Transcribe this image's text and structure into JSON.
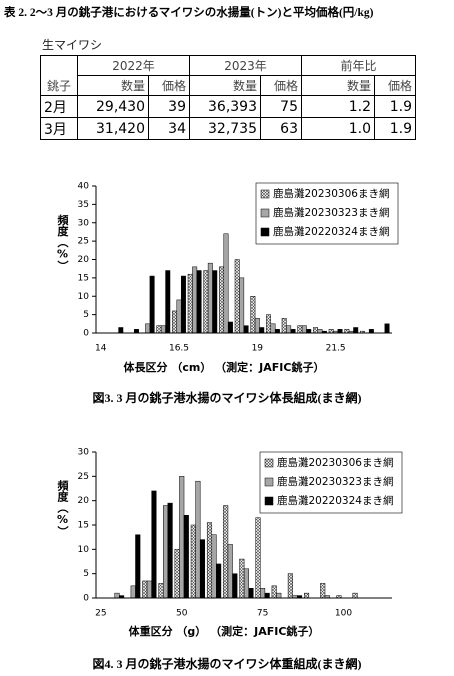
{
  "table": {
    "title": "表 2. 2～3 月の銚子港におけるマイワシの水揚量(トン)と平均価格(円/kg)",
    "subtitle": "生マイワシ",
    "header": [
      "2022年",
      "2023年",
      "前年比"
    ],
    "columns": [
      "銚子",
      "数量",
      "価格",
      "数量",
      "価格",
      "数量",
      "価格"
    ],
    "rows": [
      [
        "2月",
        "29,430",
        "39",
        "36,393",
        "75",
        "1.2",
        "1.9"
      ],
      [
        "3月",
        "31,420",
        "34",
        "32,735",
        "63",
        "1.0",
        "1.9"
      ]
    ]
  },
  "chart_data": [
    {
      "type": "bar",
      "caption": "図3.  3 月の銚子港水揚のマイワシ体長組成(まき網)",
      "xlabel": "体長区分 （cm）  （測定：JAFIC銚子）",
      "ylabel": "頻度（%）",
      "x": [
        14.5,
        15,
        15.5,
        16,
        16.5,
        17,
        17.5,
        18,
        18.5,
        19,
        19.5,
        20,
        20.5,
        21,
        21.5,
        22,
        22.5,
        23
      ],
      "xlim": [
        13.85,
        23.3
      ],
      "xticks": [
        14,
        16.5,
        19,
        21.5
      ],
      "ylim": [
        0,
        40
      ],
      "yticks": [
        0,
        5,
        10,
        15,
        20,
        25,
        30,
        35,
        40
      ],
      "legend": "upper right",
      "series": [
        {
          "name": "鹿島灘20230306まき網",
          "color": "#ffffff",
          "hatch": "crosshatch",
          "values": [
            0,
            0,
            0,
            2,
            6,
            16,
            17,
            18,
            20,
            10,
            5,
            4,
            2,
            1.5,
            1,
            1,
            0.5,
            0
          ]
        },
        {
          "name": "鹿島灘20230323まき網",
          "color": "#a6a6a6",
          "values": [
            0,
            0,
            2.5,
            2,
            9,
            18,
            19,
            27,
            15,
            4,
            2.5,
            2,
            2,
            1,
            0.5,
            0.5,
            0,
            0
          ]
        },
        {
          "name": "鹿島灘20220324まき網",
          "color": "#000000",
          "values": [
            1.5,
            1,
            15.5,
            17,
            15.5,
            17,
            17,
            3,
            2,
            1.5,
            1,
            1,
            1,
            0.5,
            1,
            1.5,
            1,
            2.5
          ]
        }
      ]
    },
    {
      "type": "bar",
      "caption": "図4. 3 月の銚子港水揚のマイワシ体重組成(まき網)",
      "xlabel": "体重区分 （g）  （測定：JAFIC銚子）",
      "ylabel": "頻度（%）",
      "x": [
        30,
        35,
        40,
        45,
        50,
        55,
        60,
        65,
        70,
        75,
        80,
        85,
        90,
        95,
        100,
        105,
        110
      ],
      "xlim": [
        23.5,
        115
      ],
      "xticks": [
        25,
        50,
        75,
        100
      ],
      "ylim": [
        0,
        30
      ],
      "yticks": [
        0,
        5,
        10,
        15,
        20,
        25,
        30
      ],
      "legend": "upper right",
      "series": [
        {
          "name": "鹿島灘20230306まき網",
          "color": "#ffffff",
          "hatch": "crosshatch",
          "values": [
            0,
            0,
            3.5,
            3,
            10,
            15,
            15.5,
            19,
            8,
            16.5,
            2.5,
            5,
            1,
            3,
            0.5,
            1,
            0
          ]
        },
        {
          "name": "鹿島灘20230323まき網",
          "color": "#a6a6a6",
          "values": [
            1,
            2.5,
            3.5,
            19,
            25,
            24,
            13,
            11,
            6,
            2,
            1,
            0.5,
            0,
            0.5,
            0,
            0,
            0
          ]
        },
        {
          "name": "鹿島灘20220324まき網",
          "color": "#000000",
          "values": [
            0.5,
            13,
            22,
            19.5,
            17,
            12,
            7,
            5,
            2,
            1,
            0,
            0.5,
            0,
            0,
            0,
            0,
            0
          ]
        }
      ]
    }
  ]
}
